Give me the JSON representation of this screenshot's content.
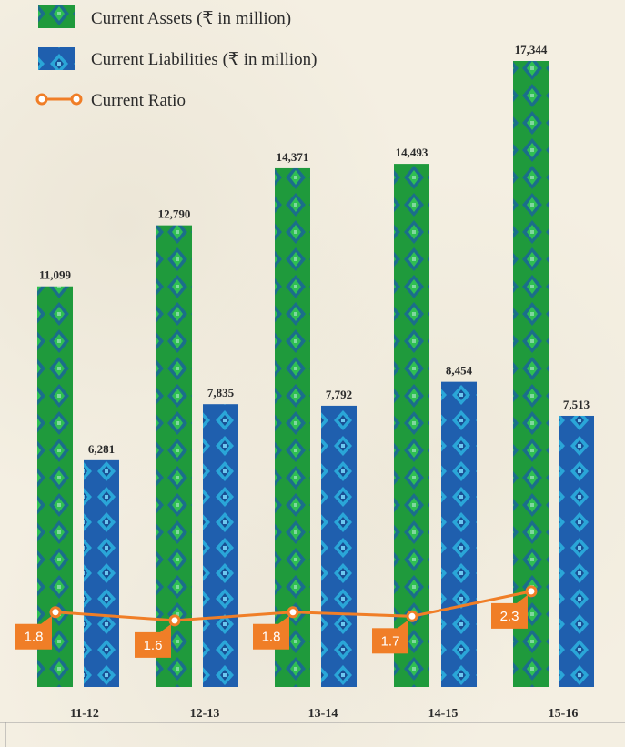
{
  "colors": {
    "assets_base": "#1f9a3c",
    "assets_pattern": "#1b6e8a",
    "liabilities_base": "#1f5fae",
    "liabilities_pattern": "#2aa6d8",
    "ratio_line": "#f07e27",
    "ratio_box": "#f07e27",
    "axis": "#8a8a8a"
  },
  "chart_data": {
    "type": "bar",
    "categories": [
      "11-12",
      "12-13",
      "13-14",
      "14-15",
      "15-16"
    ],
    "series": [
      {
        "name": "Current Assets (₹ in million)",
        "values": [
          11099,
          12790,
          14371,
          14493,
          17344
        ],
        "labels": [
          "11,099",
          "12,790",
          "14,371",
          "14,493",
          "17,344"
        ]
      },
      {
        "name": "Current Liabilities (₹ in million)",
        "values": [
          6281,
          7835,
          7792,
          8454,
          7513
        ],
        "labels": [
          "6,281",
          "7,835",
          "7,792",
          "8,454",
          "7,513"
        ]
      }
    ],
    "line_series": {
      "name": "Current Ratio",
      "values": [
        1.8,
        1.6,
        1.8,
        1.7,
        2.3
      ],
      "labels": [
        "1.8",
        "1.6",
        "1.8",
        "1.7",
        "2.3"
      ]
    },
    "legend": {
      "position": "top-left",
      "items": [
        "Current Assets (₹ in million)",
        "Current Liabilities (₹ in million)",
        "Current Ratio"
      ]
    },
    "ylim": [
      0,
      18000
    ],
    "ratio_ylim": [
      0,
      9
    ],
    "grid": false
  }
}
